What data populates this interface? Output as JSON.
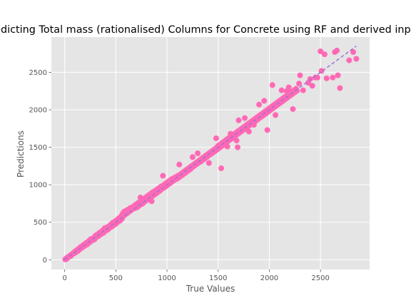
{
  "chart_data": {
    "type": "scatter",
    "title": "Predicting Total mass (rationalised) Columns for Concrete using RF and derived inputs",
    "xlabel": "True Values",
    "ylabel": "Predictions",
    "xlim": [
      -130,
      2980
    ],
    "ylim": [
      -130,
      2970
    ],
    "xticks": [
      0,
      500,
      1000,
      1500,
      2000,
      2500
    ],
    "yticks": [
      0,
      500,
      1000,
      1500,
      2000,
      2500
    ],
    "grid": true,
    "style": "ggplot",
    "colors": {
      "points": "#ff69b4",
      "identity_line": "#9370db",
      "panel_bg": "#e5e5e5",
      "grid": "#ffffff"
    },
    "identity_line": {
      "x": [
        0,
        2850
      ],
      "y": [
        0,
        2850
      ],
      "style": "dashed"
    },
    "points": [
      [
        5,
        5
      ],
      [
        10,
        12
      ],
      [
        15,
        8
      ],
      [
        20,
        22
      ],
      [
        30,
        25
      ],
      [
        35,
        40
      ],
      [
        45,
        42
      ],
      [
        55,
        60
      ],
      [
        60,
        50
      ],
      [
        70,
        72
      ],
      [
        80,
        85
      ],
      [
        90,
        82
      ],
      [
        100,
        110
      ],
      [
        110,
        100
      ],
      [
        120,
        130
      ],
      [
        130,
        118
      ],
      [
        140,
        150
      ],
      [
        150,
        140
      ],
      [
        160,
        175
      ],
      [
        175,
        165
      ],
      [
        185,
        200
      ],
      [
        195,
        185
      ],
      [
        210,
        225
      ],
      [
        220,
        205
      ],
      [
        235,
        250
      ],
      [
        245,
        232
      ],
      [
        255,
        275
      ],
      [
        265,
        255
      ],
      [
        280,
        290
      ],
      [
        290,
        270
      ],
      [
        300,
        320
      ],
      [
        310,
        300
      ],
      [
        320,
        340
      ],
      [
        330,
        315
      ],
      [
        345,
        365
      ],
      [
        355,
        340
      ],
      [
        370,
        390
      ],
      [
        380,
        360
      ],
      [
        390,
        420
      ],
      [
        400,
        385
      ],
      [
        410,
        430
      ],
      [
        420,
        400
      ],
      [
        430,
        445
      ],
      [
        440,
        425
      ],
      [
        450,
        470
      ],
      [
        460,
        440
      ],
      [
        470,
        495
      ],
      [
        480,
        460
      ],
      [
        490,
        510
      ],
      [
        500,
        480
      ],
      [
        510,
        530
      ],
      [
        520,
        505
      ],
      [
        530,
        555
      ],
      [
        540,
        520
      ],
      [
        550,
        575
      ],
      [
        555,
        540
      ],
      [
        560,
        600
      ],
      [
        565,
        560
      ],
      [
        570,
        620
      ],
      [
        575,
        585
      ],
      [
        580,
        640
      ],
      [
        590,
        600
      ],
      [
        600,
        655
      ],
      [
        610,
        620
      ],
      [
        620,
        670
      ],
      [
        630,
        640
      ],
      [
        640,
        690
      ],
      [
        650,
        660
      ],
      [
        660,
        700
      ],
      [
        670,
        680
      ],
      [
        680,
        720
      ],
      [
        690,
        690
      ],
      [
        700,
        740
      ],
      [
        710,
        700
      ],
      [
        720,
        760
      ],
      [
        730,
        725
      ],
      [
        740,
        780
      ],
      [
        750,
        740
      ],
      [
        760,
        800
      ],
      [
        770,
        760
      ],
      [
        780,
        820
      ],
      [
        790,
        785
      ],
      [
        800,
        840
      ],
      [
        810,
        800
      ],
      [
        820,
        860
      ],
      [
        830,
        820
      ],
      [
        840,
        880
      ],
      [
        850,
        840
      ],
      [
        860,
        900
      ],
      [
        870,
        860
      ],
      [
        880,
        915
      ],
      [
        890,
        880
      ],
      [
        900,
        935
      ],
      [
        910,
        900
      ],
      [
        920,
        955
      ],
      [
        930,
        920
      ],
      [
        940,
        975
      ],
      [
        950,
        945
      ],
      [
        960,
        990
      ],
      [
        970,
        960
      ],
      [
        980,
        1010
      ],
      [
        990,
        980
      ],
      [
        1000,
        1030
      ],
      [
        1010,
        1000
      ],
      [
        1020,
        1050
      ],
      [
        1030,
        1020
      ],
      [
        1040,
        1070
      ],
      [
        1050,
        1040
      ],
      [
        1060,
        1085
      ],
      [
        1070,
        1060
      ],
      [
        1080,
        1100
      ],
      [
        1090,
        1075
      ],
      [
        1100,
        1115
      ],
      [
        1110,
        1090
      ],
      [
        1120,
        1130
      ],
      [
        1130,
        1110
      ],
      [
        1140,
        1150
      ],
      [
        1150,
        1130
      ],
      [
        1160,
        1170
      ],
      [
        1170,
        1150
      ],
      [
        1180,
        1190
      ],
      [
        1190,
        1170
      ],
      [
        1200,
        1210
      ],
      [
        1210,
        1190
      ],
      [
        1220,
        1230
      ],
      [
        1230,
        1210
      ],
      [
        1240,
        1250
      ],
      [
        1250,
        1235
      ],
      [
        1260,
        1270
      ],
      [
        1270,
        1255
      ],
      [
        1280,
        1290
      ],
      [
        1290,
        1275
      ],
      [
        1300,
        1310
      ],
      [
        1310,
        1295
      ],
      [
        1320,
        1330
      ],
      [
        1330,
        1310
      ],
      [
        1340,
        1350
      ],
      [
        1350,
        1330
      ],
      [
        1360,
        1370
      ],
      [
        1370,
        1350
      ],
      [
        1380,
        1390
      ],
      [
        1390,
        1370
      ],
      [
        1400,
        1410
      ],
      [
        1410,
        1395
      ],
      [
        1420,
        1430
      ],
      [
        1430,
        1410
      ],
      [
        1440,
        1450
      ],
      [
        1450,
        1430
      ],
      [
        1460,
        1470
      ],
      [
        1470,
        1450
      ],
      [
        1480,
        1490
      ],
      [
        1490,
        1470
      ],
      [
        1500,
        1520
      ],
      [
        1510,
        1490
      ],
      [
        1520,
        1540
      ],
      [
        1530,
        1510
      ],
      [
        1540,
        1560
      ],
      [
        1550,
        1530
      ],
      [
        1560,
        1580
      ],
      [
        1570,
        1555
      ],
      [
        1580,
        1600
      ],
      [
        1590,
        1575
      ],
      [
        1600,
        1620
      ],
      [
        1610,
        1595
      ],
      [
        1620,
        1640
      ],
      [
        1630,
        1615
      ],
      [
        1640,
        1660
      ],
      [
        1650,
        1635
      ],
      [
        1660,
        1680
      ],
      [
        1670,
        1655
      ],
      [
        1680,
        1700
      ],
      [
        1690,
        1675
      ],
      [
        1700,
        1720
      ],
      [
        1710,
        1695
      ],
      [
        1720,
        1740
      ],
      [
        1730,
        1715
      ],
      [
        1740,
        1760
      ],
      [
        1750,
        1735
      ],
      [
        1760,
        1780
      ],
      [
        1770,
        1755
      ],
      [
        1780,
        1800
      ],
      [
        1790,
        1775
      ],
      [
        1800,
        1820
      ],
      [
        1810,
        1795
      ],
      [
        1820,
        1840
      ],
      [
        1830,
        1815
      ],
      [
        1840,
        1860
      ],
      [
        1850,
        1835
      ],
      [
        1860,
        1880
      ],
      [
        1870,
        1855
      ],
      [
        1880,
        1900
      ],
      [
        1890,
        1875
      ],
      [
        1900,
        1920
      ],
      [
        1910,
        1895
      ],
      [
        1920,
        1940
      ],
      [
        1930,
        1915
      ],
      [
        1940,
        1960
      ],
      [
        1950,
        1935
      ],
      [
        1960,
        1980
      ],
      [
        1970,
        1955
      ],
      [
        1980,
        2000
      ],
      [
        1990,
        1975
      ],
      [
        2000,
        2020
      ],
      [
        2010,
        1995
      ],
      [
        2020,
        2040
      ],
      [
        2030,
        2015
      ],
      [
        2040,
        2060
      ],
      [
        2050,
        2035
      ],
      [
        2060,
        2080
      ],
      [
        2070,
        2055
      ],
      [
        2080,
        2100
      ],
      [
        2090,
        2075
      ],
      [
        2100,
        2120
      ],
      [
        2110,
        2095
      ],
      [
        2120,
        2140
      ],
      [
        2130,
        2115
      ],
      [
        2140,
        2160
      ],
      [
        2150,
        2135
      ],
      [
        2160,
        2180
      ],
      [
        2170,
        2155
      ],
      [
        2180,
        2200
      ],
      [
        2190,
        2175
      ],
      [
        2200,
        2220
      ],
      [
        2210,
        2195
      ],
      [
        2220,
        2240
      ],
      [
        2230,
        2215
      ],
      [
        2240,
        2260
      ],
      [
        2250,
        2235
      ],
      [
        2260,
        2280
      ],
      [
        2270,
        2255
      ],
      [
        1480,
        1620
      ],
      [
        1530,
        1220
      ],
      [
        1690,
        1500
      ],
      [
        1800,
        1710
      ],
      [
        1680,
        1590
      ],
      [
        1900,
        2070
      ],
      [
        1950,
        2120
      ],
      [
        2030,
        2330
      ],
      [
        2120,
        2260
      ],
      [
        1980,
        1730
      ],
      [
        1850,
        1800
      ],
      [
        1620,
        1680
      ],
      [
        1250,
        1370
      ],
      [
        1300,
        1420
      ],
      [
        960,
        1120
      ],
      [
        740,
        830
      ],
      [
        850,
        780
      ],
      [
        1120,
        1270
      ],
      [
        1410,
        1290
      ],
      [
        1590,
        1510
      ],
      [
        1700,
        1860
      ],
      [
        1760,
        1890
      ],
      [
        2060,
        1930
      ],
      [
        2170,
        2250
      ],
      [
        2230,
        2010
      ],
      [
        2290,
        2350
      ],
      [
        2300,
        2460
      ],
      [
        2190,
        2300
      ],
      [
        2330,
        2260
      ],
      [
        2380,
        2360
      ],
      [
        2400,
        2410
      ],
      [
        2420,
        2320
      ],
      [
        2450,
        2430
      ],
      [
        2470,
        2430
      ],
      [
        2500,
        2780
      ],
      [
        2510,
        2520
      ],
      [
        2540,
        2740
      ],
      [
        2560,
        2420
      ],
      [
        2620,
        2430
      ],
      [
        2640,
        2770
      ],
      [
        2660,
        2790
      ],
      [
        2670,
        2460
      ],
      [
        2690,
        2290
      ],
      [
        2780,
        2660
      ],
      [
        2820,
        2770
      ],
      [
        2850,
        2680
      ]
    ]
  }
}
